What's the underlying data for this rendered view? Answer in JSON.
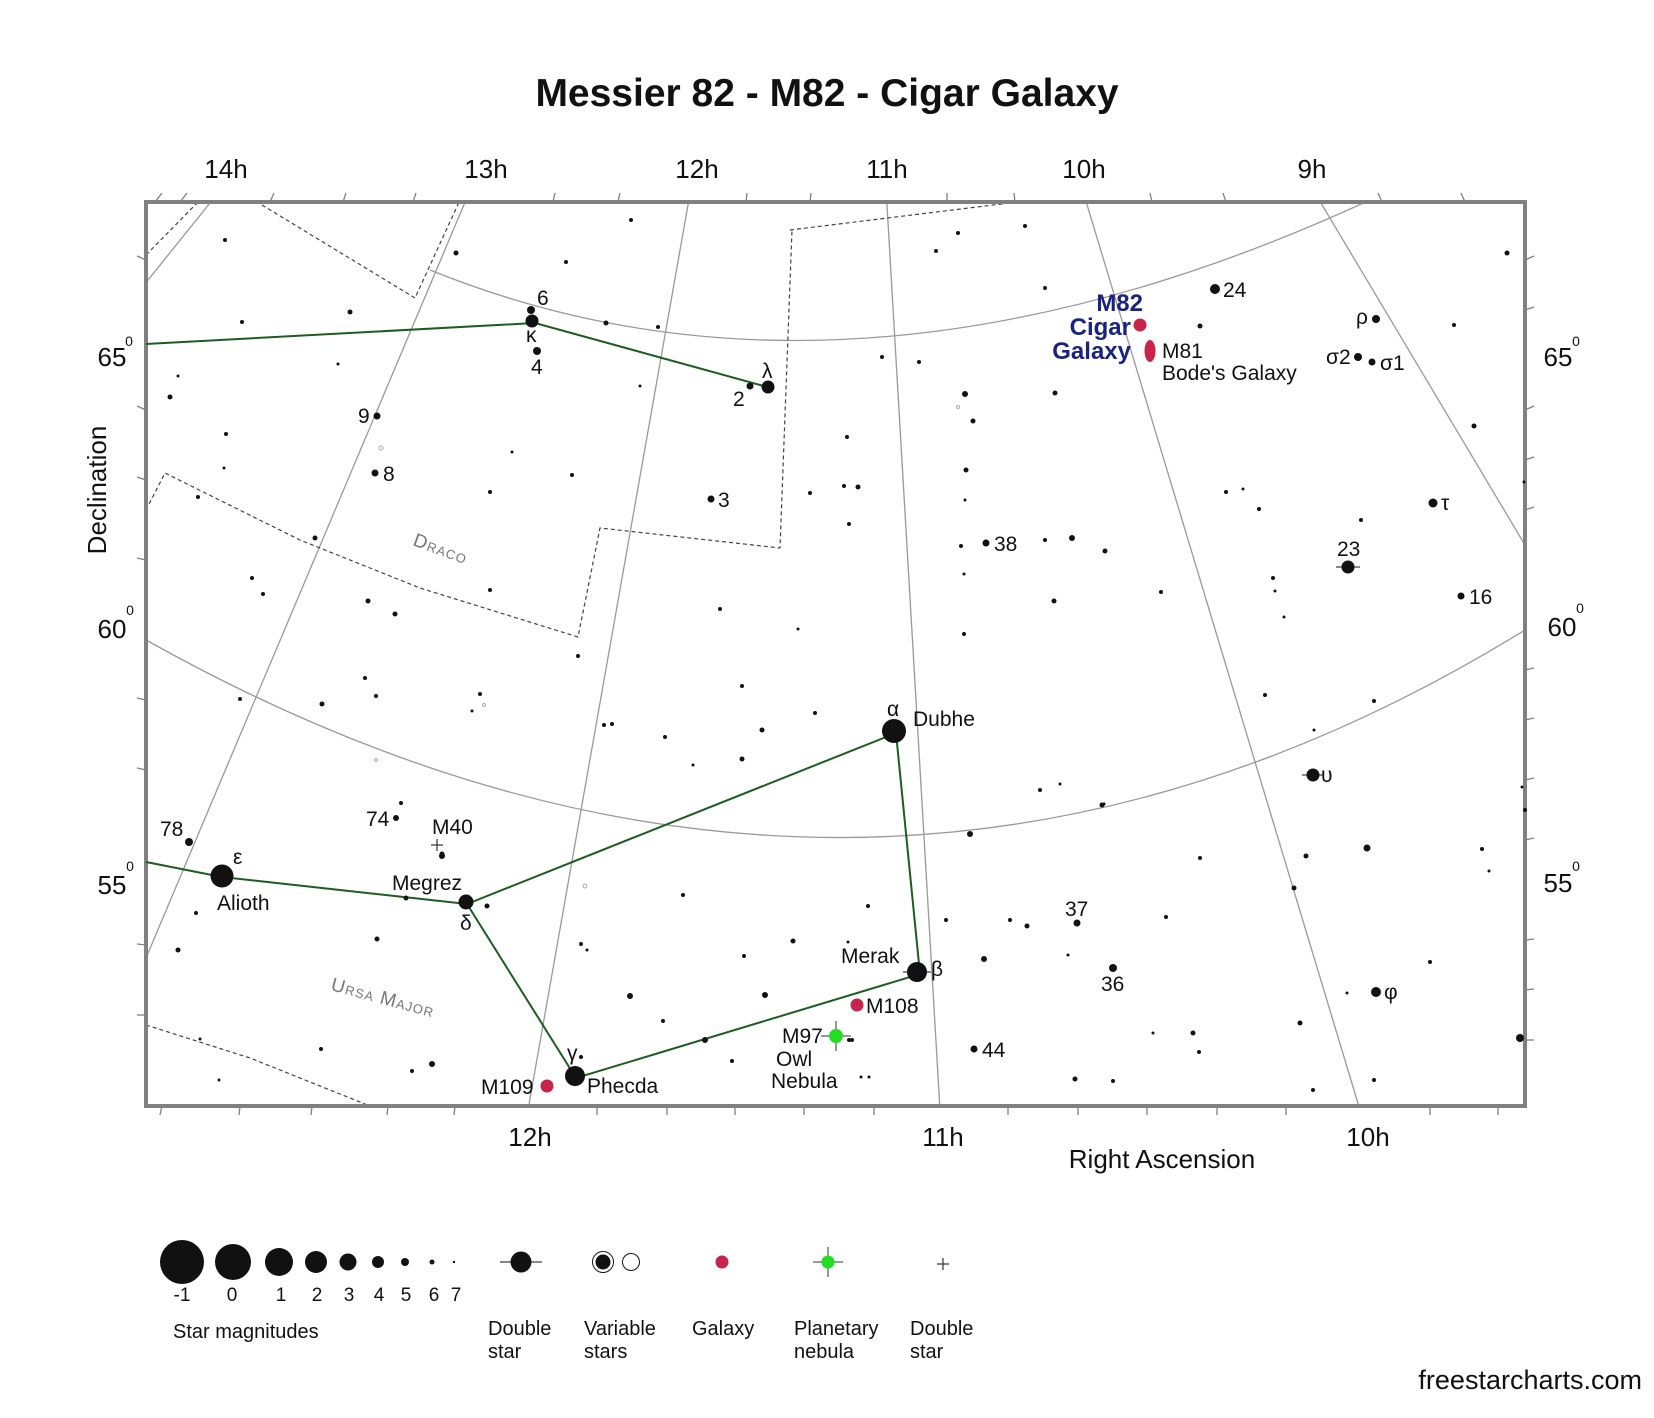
{
  "title": "Messier 82 - M82 - Cigar Galaxy",
  "credit": "freestarcharts.com",
  "axes": {
    "x_label": "Right Ascension",
    "y_label": "Declination",
    "top_ra_ticks": [
      "14h",
      "13h",
      "12h",
      "11h",
      "10h",
      "9h"
    ],
    "bottom_ra_ticks": [
      "12h",
      "11h",
      "10h"
    ],
    "dec_ticks": [
      {
        "value": "65",
        "sup": "0"
      },
      {
        "value": "60",
        "sup": "0"
      },
      {
        "value": "55",
        "sup": "0"
      }
    ]
  },
  "constellations": [
    "Draco",
    "Ursa Major"
  ],
  "target": {
    "name": "M82",
    "label_line1": "Cigar",
    "label_line2": "Galaxy",
    "color": "#1a237e"
  },
  "objects": {
    "m81": {
      "name": "M81",
      "common": "Bode's Galaxy"
    },
    "m108": "M108",
    "m109": "M109",
    "m97": {
      "name": "M97",
      "common1": "Owl",
      "common2": "Nebula"
    },
    "m40": "M40"
  },
  "named_stars": {
    "dubhe": {
      "greek": "α",
      "name": "Dubhe"
    },
    "merak": {
      "greek": "β",
      "name": "Merak"
    },
    "phecda": {
      "greek": "γ",
      "name": "Phecda"
    },
    "megrez": {
      "greek": "δ",
      "name": "Megrez"
    },
    "alioth": {
      "greek": "ε",
      "name": "Alioth"
    }
  },
  "star_labels": [
    "6",
    "κ",
    "4",
    "λ",
    "2",
    "9",
    "8",
    "3",
    "38",
    "24",
    "ρ",
    "σ2",
    "σ1",
    "τ",
    "23",
    "16",
    "υ",
    "78",
    "74",
    "37",
    "36",
    "44",
    "φ"
  ],
  "legend": {
    "magnitudes": [
      "-1",
      "0",
      "1",
      "2",
      "3",
      "4",
      "5",
      "6",
      "7"
    ],
    "magnitudes_label": "Star magnitudes",
    "items": [
      {
        "line1": "Double",
        "line2": "star"
      },
      {
        "line1": "Variable",
        "line2": "stars"
      },
      {
        "line1": "Galaxy",
        "line2": ""
      },
      {
        "line1": "Planetary",
        "line2": "nebula"
      },
      {
        "line1": "Double",
        "line2": "star"
      }
    ]
  },
  "colors": {
    "asterism": "#1b5e20",
    "galaxy": "#c8234a",
    "planetary_nebula": "#22dd22",
    "grid": "#999999",
    "frame": "#808080",
    "boundary": "#444444"
  }
}
